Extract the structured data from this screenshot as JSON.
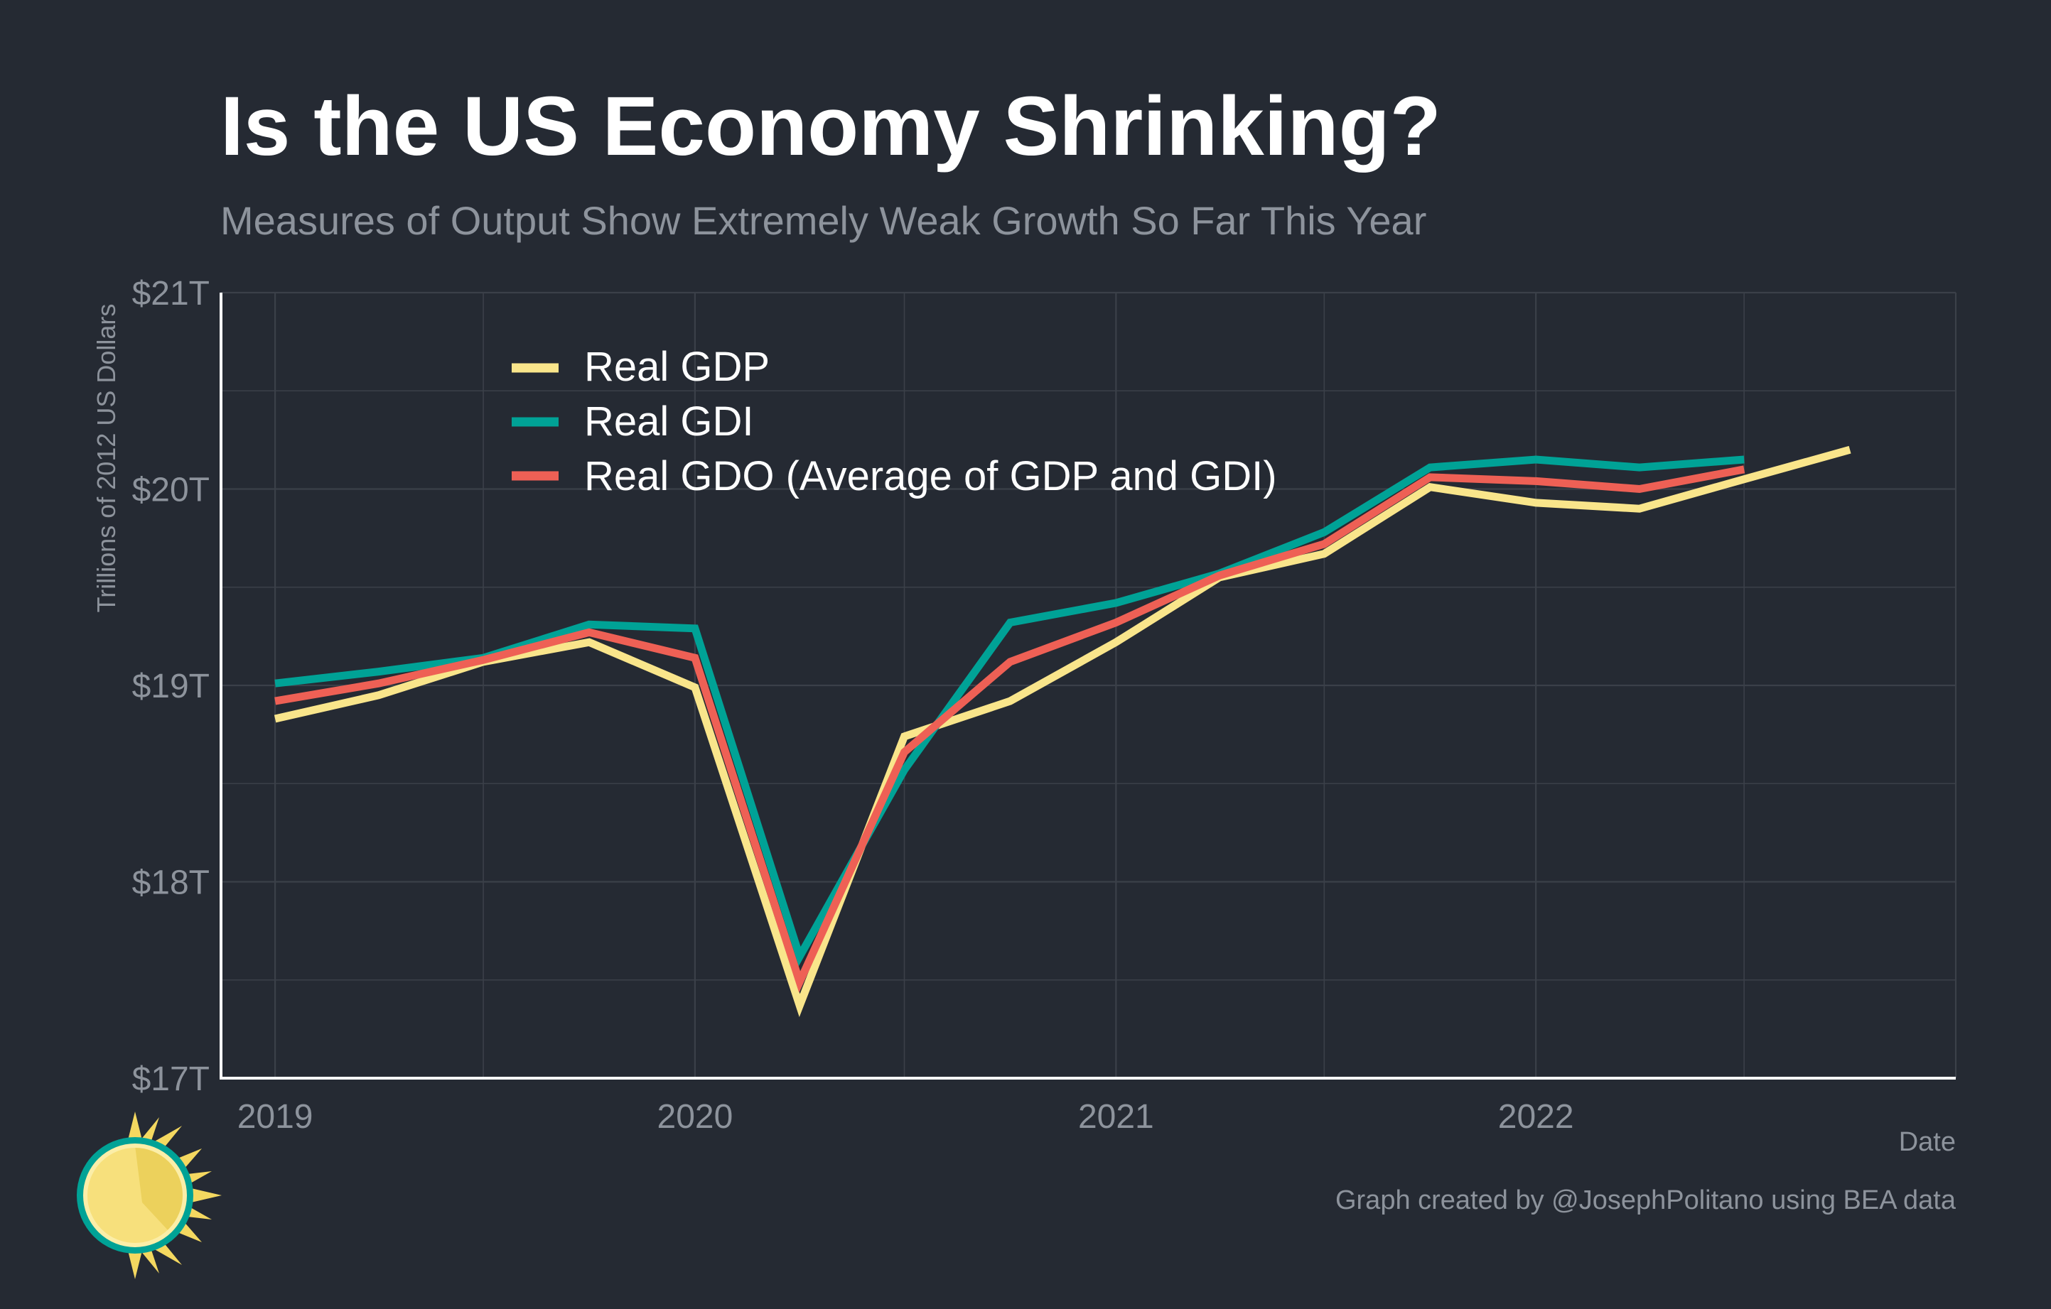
{
  "chart_data": {
    "type": "line",
    "title": "Is the US Economy Shrinking?",
    "subtitle": "Measures of Output Show Extremely Weak Growth So Far This Year",
    "xlabel": "Date",
    "ylabel": "Trillions of 2012 US Dollars",
    "ylim": [
      17,
      21
    ],
    "yticks": [
      17,
      18,
      19,
      20,
      21
    ],
    "ytick_labels": [
      "$17T",
      "$18T",
      "$19T",
      "$20T",
      "$21T"
    ],
    "xlim": [
      "2018-11-15",
      "2023-01-01"
    ],
    "xticks": [
      "2019-01-01",
      "2020-01-01",
      "2021-01-01",
      "2022-01-01"
    ],
    "xtick_labels": [
      "2019",
      "2020",
      "2021",
      "2022"
    ],
    "grid": true,
    "legend_position": "top-left",
    "caption": "Graph created by @JosephPolitano using BEA data",
    "series": [
      {
        "name": "Real GDP",
        "color": "#f9e58b",
        "x": [
          "2019-01-01",
          "2019-04-01",
          "2019-07-01",
          "2019-10-01",
          "2020-01-01",
          "2020-04-01",
          "2020-07-01",
          "2020-10-01",
          "2021-01-01",
          "2021-04-01",
          "2021-07-01",
          "2021-10-01",
          "2022-01-01",
          "2022-04-01",
          "2022-07-01",
          "2022-10-01"
        ],
        "values": [
          18.83,
          18.95,
          19.12,
          19.22,
          18.99,
          17.37,
          18.74,
          18.92,
          19.22,
          19.55,
          19.67,
          20.01,
          19.93,
          19.9,
          20.05,
          20.2
        ]
      },
      {
        "name": "Real GDI",
        "color": "#00a296",
        "x": [
          "2019-01-01",
          "2019-04-01",
          "2019-07-01",
          "2019-10-01",
          "2020-01-01",
          "2020-04-01",
          "2020-07-01",
          "2020-10-01",
          "2021-01-01",
          "2021-04-01",
          "2021-07-01",
          "2021-10-01",
          "2022-01-01",
          "2022-04-01",
          "2022-07-01"
        ],
        "values": [
          19.01,
          19.07,
          19.14,
          19.31,
          19.29,
          17.62,
          18.57,
          19.32,
          19.42,
          19.57,
          19.78,
          20.11,
          20.15,
          20.11,
          20.15
        ]
      },
      {
        "name": "Real GDO (Average of GDP and GDI)",
        "color": "#ee6055",
        "x": [
          "2019-01-01",
          "2019-04-01",
          "2019-07-01",
          "2019-10-01",
          "2020-01-01",
          "2020-04-01",
          "2020-07-01",
          "2020-10-01",
          "2021-01-01",
          "2021-04-01",
          "2021-07-01",
          "2021-10-01",
          "2022-01-01",
          "2022-04-01",
          "2022-07-01"
        ],
        "values": [
          18.92,
          19.01,
          19.13,
          19.27,
          19.14,
          17.49,
          18.66,
          19.12,
          19.32,
          19.56,
          19.72,
          20.06,
          20.04,
          20.0,
          20.1
        ]
      }
    ]
  }
}
